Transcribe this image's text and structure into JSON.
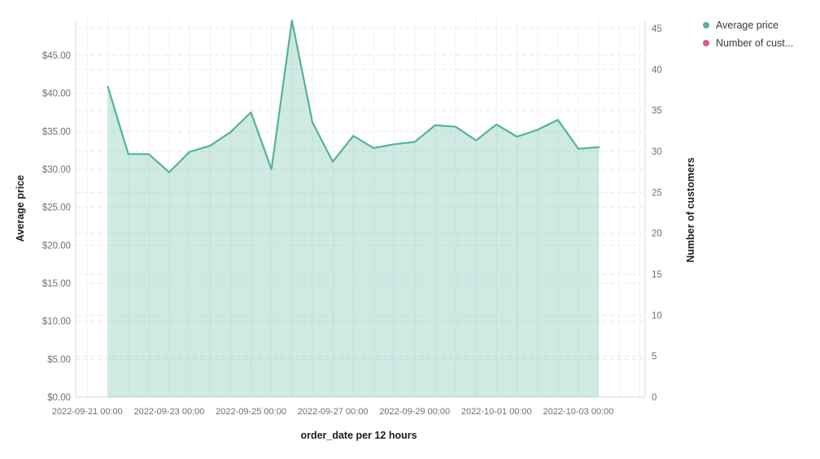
{
  "legend": {
    "position": "top-right",
    "items": [
      {
        "label": "Average price",
        "color": "#54B399"
      },
      {
        "label": "Number of cust...",
        "color": "#D36086"
      }
    ]
  },
  "chart_data": {
    "type": "area",
    "title": "",
    "xlabel": "order_date per 12 hours",
    "ylabel_left": "Average price",
    "ylabel_right": "Number of customers",
    "x_interval": "12 hours",
    "x": [
      "2022-09-21 12:00",
      "2022-09-22 00:00",
      "2022-09-22 12:00",
      "2022-09-23 00:00",
      "2022-09-23 12:00",
      "2022-09-24 00:00",
      "2022-09-24 12:00",
      "2022-09-25 00:00",
      "2022-09-25 12:00",
      "2022-09-26 00:00",
      "2022-09-26 12:00",
      "2022-09-27 00:00",
      "2022-09-27 12:00",
      "2022-09-28 00:00",
      "2022-09-28 12:00",
      "2022-09-29 00:00",
      "2022-09-29 12:00",
      "2022-09-30 00:00",
      "2022-09-30 12:00",
      "2022-10-01 00:00",
      "2022-10-01 12:00",
      "2022-10-02 00:00",
      "2022-10-02 12:00",
      "2022-10-03 00:00",
      "2022-10-03 12:00"
    ],
    "series": [
      {
        "name": "Average price",
        "axis": "left",
        "render": "area",
        "color": "#54B399",
        "fill_opacity": 0.28,
        "values": [
          40.9,
          32.0,
          32.0,
          29.6,
          32.3,
          33.1,
          34.9,
          37.5,
          30.0,
          49.6,
          36.2,
          31.0,
          34.4,
          32.8,
          33.3,
          33.6,
          35.8,
          35.6,
          33.8,
          35.9,
          34.3,
          35.2,
          36.5,
          32.7,
          32.9
        ]
      },
      {
        "name": "Number of customers",
        "axis": "right",
        "render": "none",
        "color": "#D36086",
        "values": [],
        "note": "series present in legend but no data rendered in plot"
      }
    ],
    "left_axis": {
      "title": "Average price",
      "min": 0,
      "max": 45,
      "tick_step": 5,
      "tick_labels": [
        "$0.00",
        "$5.00",
        "$10.00",
        "$15.00",
        "$20.00",
        "$25.00",
        "$30.00",
        "$35.00",
        "$40.00",
        "$45.00"
      ],
      "tick_values": [
        0,
        5,
        10,
        15,
        20,
        25,
        30,
        35,
        40,
        45
      ]
    },
    "right_axis": {
      "title": "Number of customers",
      "min": 0,
      "max": 45,
      "tick_step": 5,
      "tick_labels": [
        "0",
        "5",
        "10",
        "15",
        "20",
        "25",
        "30",
        "35",
        "40",
        "45"
      ],
      "tick_values": [
        0,
        5,
        10,
        15,
        20,
        25,
        30,
        35,
        40,
        45
      ]
    },
    "x_axis": {
      "title": "order_date per 12 hours",
      "tick_labels": [
        "2022-09-21 00:00",
        "2022-09-23 00:00",
        "2022-09-25 00:00",
        "2022-09-27 00:00",
        "2022-09-29 00:00",
        "2022-10-01 00:00",
        "2022-10-03 00:00"
      ]
    },
    "grid": {
      "horizontal": "dashed",
      "vertical": "solid",
      "legend_position": "top-right"
    }
  },
  "colors": {
    "series_green": "#54B399",
    "series_pink": "#D36086",
    "tick_text": "#69707D",
    "title_text": "#1A1C21",
    "grid_h": "#E7EAEF",
    "grid_v": "#EFF1F4",
    "axis_line": "#D6DAE0"
  }
}
